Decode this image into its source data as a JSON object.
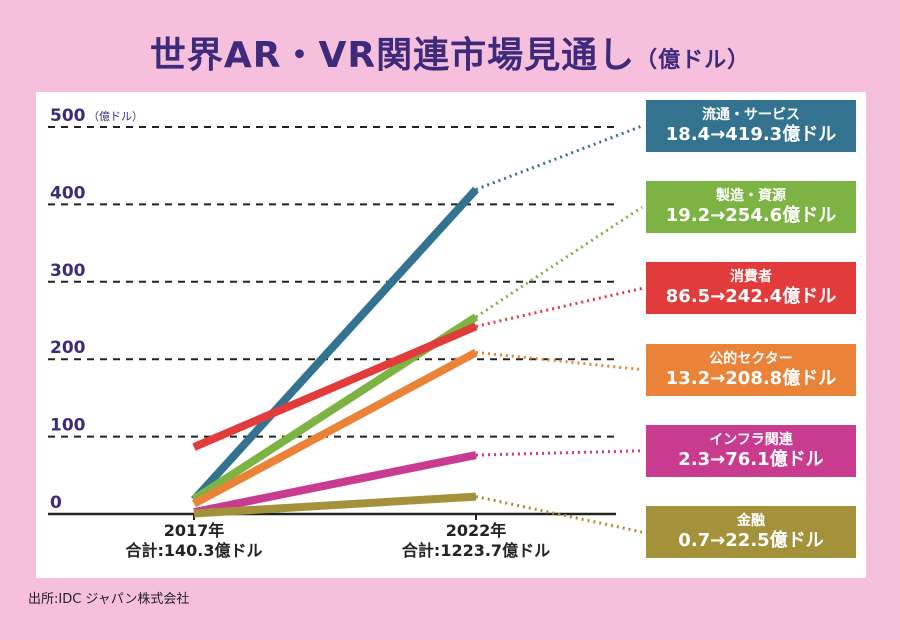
{
  "title": "世界AR・VR関連市場見通し",
  "title_unit": "（億ドル）",
  "source": "出所:IDC ジャパン株式会社",
  "chart_data": {
    "type": "line",
    "title": "世界AR・VR関連市場見通し（億ドル）",
    "ylabel_unit": "（億ドル）",
    "ylim": [
      0,
      500
    ],
    "yticks": [
      0,
      100,
      200,
      300,
      400,
      500
    ],
    "categories": [
      "2017年",
      "2022年"
    ],
    "category_totals": [
      "合計:140.3億ドル",
      "合計:1223.7億ドル"
    ],
    "grid": true,
    "series": [
      {
        "name": "流通・サービス",
        "values": [
          18.4,
          419.3
        ],
        "range_label": "18.4→419.3億ドル",
        "color": "#34738f"
      },
      {
        "name": "製造・資源",
        "values": [
          19.2,
          254.6
        ],
        "range_label": "19.2→254.6億ドル",
        "color": "#7cb342"
      },
      {
        "name": "消費者",
        "values": [
          86.5,
          242.4
        ],
        "range_label": "86.5→242.4億ドル",
        "color": "#e23b3b"
      },
      {
        "name": "公的セクター",
        "values": [
          13.2,
          208.8
        ],
        "range_label": "13.2→208.8億ドル",
        "color": "#ea8237"
      },
      {
        "name": "インフラ関連",
        "values": [
          2.3,
          76.1
        ],
        "range_label": "2.3→76.1億ドル",
        "color": "#c93b8f"
      },
      {
        "name": "金融",
        "values": [
          0.7,
          22.5
        ],
        "range_label": "0.7→22.5億ドル",
        "color": "#a4923a"
      }
    ]
  }
}
